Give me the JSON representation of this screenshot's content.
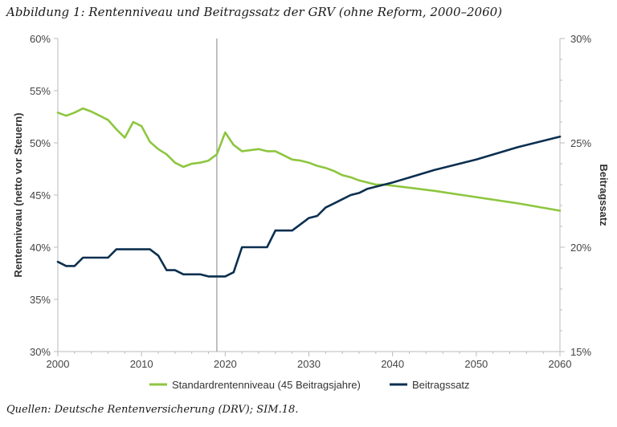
{
  "title": "Abbildung 1: Rentenniveau und Beitragssatz der GRV (ohne Reform, 2000–2060)",
  "source": "Quellen: Deutsche Rentenversicherung (DRV); SIM.18.",
  "colors": {
    "rentenniveau": "#8dc63f",
    "beitragssatz": "#0b2f4f",
    "refline": "#999999",
    "axis": "#bbbbbb"
  },
  "chart_data": {
    "type": "line",
    "title": "Abbildung 1: Rentenniveau und Beitragssatz der GRV (ohne Reform, 2000–2060)",
    "xlim": [
      2000,
      2060
    ],
    "x_ticks": [
      "2000",
      "2010",
      "2020",
      "2030",
      "2040",
      "2050",
      "2060"
    ],
    "ylabel_left": "Rentenniveau (netto vor Steuern)",
    "ylabel_right": "Beitragssatz",
    "ylim_left": [
      30,
      60
    ],
    "ylim_right": [
      15,
      30
    ],
    "y_ticks_left": [
      "30%",
      "35%",
      "40%",
      "45%",
      "50%",
      "55%",
      "60%"
    ],
    "y_ticks_right": [
      "15%",
      "20%",
      "25%",
      "30%"
    ],
    "reference_line_x": 2019,
    "legend": "bottom",
    "series": [
      {
        "name": "Standardrentenniveau (45 Beitragsjahre)",
        "axis": "left",
        "x": [
          2000,
          2001,
          2002,
          2003,
          2004,
          2005,
          2006,
          2007,
          2008,
          2009,
          2010,
          2011,
          2012,
          2013,
          2014,
          2015,
          2016,
          2017,
          2018,
          2019,
          2020,
          2021,
          2022,
          2023,
          2024,
          2025,
          2026,
          2027,
          2028,
          2029,
          2030,
          2031,
          2032,
          2033,
          2034,
          2035,
          2036,
          2037,
          2038,
          2039,
          2040,
          2045,
          2050,
          2055,
          2060
        ],
        "values": [
          52.9,
          52.6,
          52.9,
          53.3,
          53.0,
          52.6,
          52.2,
          51.3,
          50.5,
          52.0,
          51.6,
          50.1,
          49.4,
          48.9,
          48.1,
          47.7,
          48.0,
          48.1,
          48.3,
          48.9,
          51.0,
          49.8,
          49.2,
          49.3,
          49.4,
          49.2,
          49.2,
          48.8,
          48.4,
          48.3,
          48.1,
          47.8,
          47.6,
          47.3,
          46.9,
          46.7,
          46.4,
          46.2,
          46.0,
          46.0,
          45.9,
          45.4,
          44.8,
          44.2,
          43.5
        ]
      },
      {
        "name": "Beitragssatz",
        "axis": "right",
        "x": [
          2000,
          2001,
          2002,
          2003,
          2004,
          2005,
          2006,
          2007,
          2008,
          2009,
          2010,
          2011,
          2012,
          2013,
          2014,
          2015,
          2016,
          2017,
          2018,
          2019,
          2020,
          2021,
          2022,
          2023,
          2024,
          2025,
          2026,
          2027,
          2028,
          2029,
          2030,
          2031,
          2032,
          2033,
          2034,
          2035,
          2036,
          2037,
          2038,
          2039,
          2040,
          2045,
          2050,
          2055,
          2060
        ],
        "values": [
          19.3,
          19.1,
          19.1,
          19.5,
          19.5,
          19.5,
          19.5,
          19.9,
          19.9,
          19.9,
          19.9,
          19.9,
          19.6,
          18.9,
          18.9,
          18.7,
          18.7,
          18.7,
          18.6,
          18.6,
          18.6,
          18.8,
          20.0,
          20.0,
          20.0,
          20.0,
          20.8,
          20.8,
          20.8,
          21.1,
          21.4,
          21.5,
          21.9,
          22.1,
          22.3,
          22.5,
          22.6,
          22.8,
          22.9,
          23.0,
          23.1,
          23.7,
          24.2,
          24.8,
          25.3
        ]
      }
    ]
  }
}
